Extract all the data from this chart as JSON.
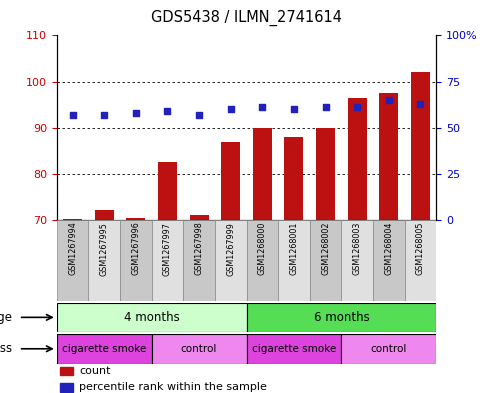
{
  "title": "GDS5438 / ILMN_2741614",
  "samples": [
    "GSM1267994",
    "GSM1267995",
    "GSM1267996",
    "GSM1267997",
    "GSM1267998",
    "GSM1267999",
    "GSM1268000",
    "GSM1268001",
    "GSM1268002",
    "GSM1268003",
    "GSM1268004",
    "GSM1268005"
  ],
  "bar_values": [
    70.3,
    72.2,
    70.5,
    82.5,
    71.2,
    87.0,
    90.0,
    88.0,
    90.0,
    96.5,
    97.5,
    102.0
  ],
  "dot_percentile": [
    57,
    57,
    58,
    59,
    57,
    60,
    61,
    60,
    61,
    61,
    65,
    63
  ],
  "bar_color": "#bb1111",
  "dot_color": "#2222bb",
  "ylim_left": [
    70,
    110
  ],
  "ylim_right": [
    0,
    100
  ],
  "yticks_left": [
    70,
    80,
    90,
    100,
    110
  ],
  "yticks_right": [
    0,
    25,
    50,
    75,
    100
  ],
  "ytick_labels_right": [
    "0",
    "25",
    "50",
    "75",
    "100%"
  ],
  "age_groups": [
    {
      "label": "4 months",
      "start": 0,
      "end": 6,
      "color": "#ccffcc"
    },
    {
      "label": "6 months",
      "start": 6,
      "end": 12,
      "color": "#55dd55"
    }
  ],
  "stress_groups": [
    {
      "label": "cigarette smoke",
      "start": 0,
      "end": 3,
      "color": "#dd44dd"
    },
    {
      "label": "control",
      "start": 3,
      "end": 6,
      "color": "#ee88ee"
    },
    {
      "label": "cigarette smoke",
      "start": 6,
      "end": 9,
      "color": "#dd44dd"
    },
    {
      "label": "control",
      "start": 9,
      "end": 12,
      "color": "#ee88ee"
    }
  ],
  "tick_label_color_left": "#cc0000",
  "tick_label_color_right": "#0000cc",
  "sample_box_color_odd": "#c8c8c8",
  "sample_box_color_even": "#e0e0e0"
}
